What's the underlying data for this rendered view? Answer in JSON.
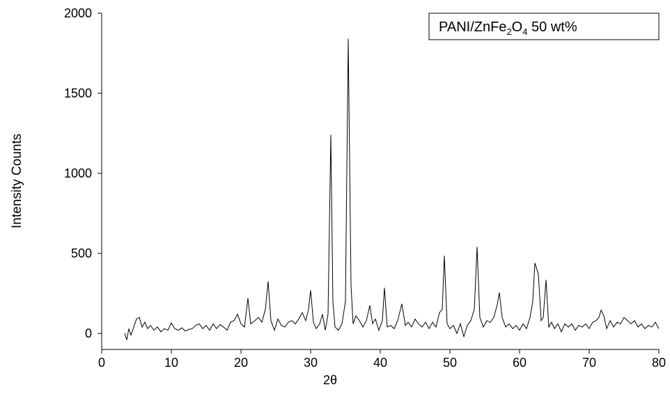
{
  "chart_data": {
    "type": "line",
    "x_label": "2θ",
    "y_label": "Intensity Counts",
    "xlim": [
      0,
      80
    ],
    "ylim": [
      -100,
      2000
    ],
    "xticks": [
      0,
      10,
      20,
      30,
      40,
      50,
      60,
      70,
      80
    ],
    "yticks": [
      0,
      500,
      1000,
      1500,
      2000
    ],
    "legend": "top-right",
    "x": [
      3.3,
      3.6,
      3.9,
      4.2,
      4.6,
      5.0,
      5.4,
      5.8,
      6.2,
      6.6,
      7.0,
      7.5,
      8.0,
      8.5,
      9.0,
      9.5,
      10.0,
      10.5,
      11.0,
      11.5,
      12.0,
      12.5,
      13.0,
      13.5,
      14.0,
      14.5,
      15.0,
      15.5,
      16.0,
      16.5,
      17.0,
      17.5,
      18.0,
      18.5,
      19.0,
      19.5,
      20.0,
      20.5,
      21.0,
      21.4,
      22.0,
      22.5,
      23.0,
      23.5,
      23.9,
      24.3,
      24.8,
      25.3,
      25.8,
      26.3,
      26.8,
      27.3,
      27.8,
      28.3,
      28.8,
      29.3,
      29.7,
      30.0,
      30.4,
      30.8,
      31.3,
      31.7,
      32.1,
      32.5,
      32.9,
      33.2,
      33.5,
      34.0,
      34.5,
      35.0,
      35.4,
      35.8,
      36.1,
      36.5,
      37.0,
      37.5,
      38.0,
      38.5,
      38.9,
      39.3,
      39.8,
      40.3,
      40.6,
      41.0,
      41.5,
      42.0,
      42.5,
      43.1,
      43.6,
      44.0,
      44.5,
      45.0,
      45.5,
      46.0,
      46.5,
      47.0,
      47.5,
      48.0,
      48.5,
      48.9,
      49.2,
      49.6,
      50.0,
      50.5,
      51.0,
      51.5,
      52.0,
      52.5,
      53.0,
      53.5,
      53.9,
      54.3,
      54.8,
      55.3,
      55.8,
      56.3,
      56.8,
      57.1,
      57.5,
      58.0,
      58.5,
      59.0,
      59.5,
      60.0,
      60.5,
      61.0,
      61.5,
      61.9,
      62.2,
      62.7,
      63.1,
      63.4,
      63.8,
      64.2,
      64.6,
      65.0,
      65.5,
      66.0,
      66.5,
      67.0,
      67.5,
      68.0,
      68.5,
      69.0,
      69.5,
      70.0,
      70.5,
      71.0,
      71.4,
      71.7,
      72.1,
      72.5,
      73.0,
      73.5,
      74.0,
      74.5,
      75.0,
      75.5,
      76.0,
      76.5,
      77.0,
      77.5,
      78.0,
      78.5,
      79.0,
      79.5,
      80.0
    ],
    "series": [
      {
        "name": "PANI/ZnFe2O4 50 wt%",
        "color": "#000000",
        "values": [
          0,
          -40,
          30,
          -10,
          40,
          90,
          100,
          40,
          70,
          30,
          50,
          20,
          40,
          10,
          30,
          20,
          65,
          30,
          20,
          35,
          15,
          25,
          30,
          50,
          60,
          30,
          50,
          20,
          60,
          30,
          55,
          40,
          20,
          70,
          80,
          120,
          60,
          40,
          220,
          60,
          80,
          100,
          70,
          150,
          325,
          80,
          20,
          90,
          50,
          40,
          70,
          80,
          60,
          90,
          130,
          80,
          150,
          270,
          70,
          30,
          60,
          120,
          20,
          120,
          1240,
          200,
          40,
          20,
          60,
          200,
          1840,
          300,
          60,
          110,
          80,
          40,
          80,
          175,
          60,
          90,
          20,
          80,
          285,
          40,
          50,
          30,
          80,
          185,
          50,
          70,
          40,
          90,
          60,
          40,
          70,
          30,
          70,
          40,
          130,
          150,
          485,
          60,
          30,
          50,
          0,
          60,
          -20,
          50,
          80,
          150,
          540,
          100,
          40,
          80,
          70,
          100,
          180,
          255,
          100,
          40,
          60,
          30,
          50,
          20,
          60,
          30,
          100,
          200,
          440,
          370,
          80,
          100,
          335,
          40,
          70,
          30,
          60,
          10,
          60,
          40,
          60,
          20,
          50,
          40,
          60,
          30,
          70,
          80,
          100,
          145,
          110,
          30,
          80,
          40,
          70,
          60,
          100,
          80,
          60,
          80,
          40,
          60,
          30,
          50,
          40,
          70,
          30
        ]
      }
    ]
  }
}
